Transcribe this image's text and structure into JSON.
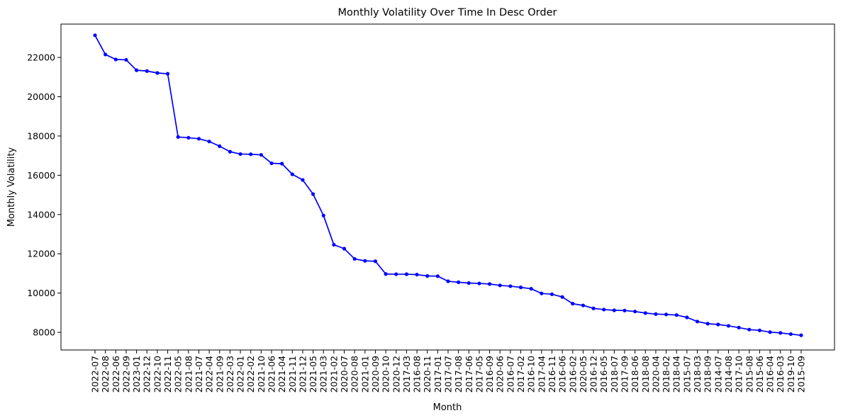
{
  "chart_data": {
    "type": "line",
    "title": "Monthly Volatility Over Time In Desc Order",
    "xlabel": "Month",
    "ylabel": "Monthly Volatility",
    "ylim": [
      7100,
      23700
    ],
    "yticks": [
      8000,
      10000,
      12000,
      14000,
      16000,
      18000,
      20000,
      22000
    ],
    "grid": false,
    "legend": "none",
    "categories": [
      "2022-07",
      "2022-08",
      "2022-06",
      "2022-09",
      "2023-01",
      "2022-12",
      "2022-10",
      "2022-11",
      "2022-05",
      "2021-08",
      "2021-07",
      "2022-04",
      "2021-09",
      "2022-03",
      "2022-01",
      "2022-02",
      "2021-10",
      "2021-06",
      "2021-04",
      "2021-11",
      "2021-12",
      "2021-05",
      "2021-03",
      "2021-02",
      "2020-07",
      "2020-08",
      "2021-01",
      "2020-09",
      "2020-10",
      "2020-12",
      "2017-03",
      "2016-08",
      "2020-11",
      "2017-01",
      "2017-07",
      "2017-08",
      "2017-06",
      "2017-05",
      "2016-09",
      "2020-06",
      "2016-07",
      "2017-02",
      "2016-10",
      "2017-04",
      "2016-11",
      "2016-06",
      "2016-02",
      "2020-05",
      "2016-12",
      "2016-05",
      "2018-07",
      "2017-09",
      "2018-06",
      "2018-08",
      "2020-04",
      "2018-02",
      "2018-04",
      "2015-07",
      "2018-03",
      "2018-09",
      "2014-07",
      "2014-08",
      "2017-10",
      "2015-08",
      "2015-06",
      "2016-04",
      "2016-03",
      "2019-10",
      "2015-09"
    ],
    "series": [
      {
        "color": "#0000ff",
        "marker": "circle",
        "values": [
          23130,
          22150,
          21900,
          21880,
          21350,
          21310,
          21210,
          21170,
          17950,
          17910,
          17860,
          17720,
          17480,
          17200,
          17080,
          17070,
          17040,
          16610,
          16590,
          16050,
          15760,
          15040,
          13950,
          12460,
          12260,
          11740,
          11640,
          11620,
          10970,
          10960,
          10960,
          10940,
          10870,
          10860,
          10600,
          10550,
          10510,
          10490,
          10460,
          10390,
          10350,
          10290,
          10220,
          9980,
          9940,
          9800,
          9460,
          9370,
          9220,
          9160,
          9120,
          9110,
          9060,
          8980,
          8930,
          8910,
          8880,
          8760,
          8550,
          8440,
          8400,
          8330,
          8240,
          8140,
          8100,
          8010,
          7970,
          7910,
          7850
        ]
      }
    ]
  }
}
